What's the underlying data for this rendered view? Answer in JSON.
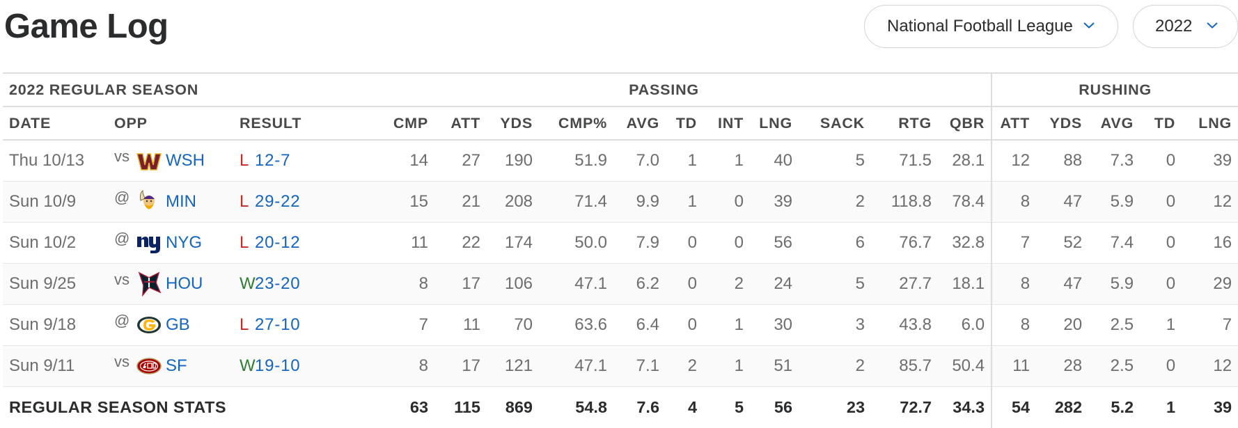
{
  "header": {
    "title": "Game Log",
    "league_select": "National Football League",
    "season_select": "2022"
  },
  "table": {
    "season_label": "2022 REGULAR SEASON",
    "passing_label": "PASSING",
    "rushing_label": "RUSHING",
    "columns": {
      "date": "DATE",
      "opp": "OPP",
      "result": "RESULT",
      "cmp": "CMP",
      "att": "ATT",
      "yds": "YDS",
      "cmp_pct": "CMP%",
      "avg": "AVG",
      "td": "TD",
      "int": "INT",
      "lng": "LNG",
      "sack": "SACK",
      "rtg": "RTG",
      "qbr": "QBR",
      "r_att": "ATT",
      "r_yds": "YDS",
      "r_avg": "AVG",
      "r_td": "TD",
      "r_lng": "LNG"
    },
    "rows": [
      {
        "date": "Thu 10/13",
        "loc": "vs",
        "logo": "commanders-logo",
        "team": "WSH",
        "wl": "L",
        "score": "12-7",
        "cmp": "14",
        "att": "27",
        "yds": "190",
        "cmp_pct": "51.9",
        "avg": "7.0",
        "td": "1",
        "int": "1",
        "lng": "40",
        "sack": "5",
        "rtg": "71.5",
        "qbr": "28.1",
        "r_att": "12",
        "r_yds": "88",
        "r_avg": "7.3",
        "r_td": "0",
        "r_lng": "39"
      },
      {
        "date": "Sun 10/9",
        "loc": "@",
        "logo": "vikings-logo",
        "team": "MIN",
        "wl": "L",
        "score": "29-22",
        "cmp": "15",
        "att": "21",
        "yds": "208",
        "cmp_pct": "71.4",
        "avg": "9.9",
        "td": "1",
        "int": "0",
        "lng": "39",
        "sack": "2",
        "rtg": "118.8",
        "qbr": "78.4",
        "r_att": "8",
        "r_yds": "47",
        "r_avg": "5.9",
        "r_td": "0",
        "r_lng": "12"
      },
      {
        "date": "Sun 10/2",
        "loc": "@",
        "logo": "giants-logo",
        "team": "NYG",
        "wl": "L",
        "score": "20-12",
        "cmp": "11",
        "att": "22",
        "yds": "174",
        "cmp_pct": "50.0",
        "avg": "7.9",
        "td": "0",
        "int": "0",
        "lng": "56",
        "sack": "6",
        "rtg": "76.7",
        "qbr": "32.8",
        "r_att": "7",
        "r_yds": "52",
        "r_avg": "7.4",
        "r_td": "0",
        "r_lng": "16"
      },
      {
        "date": "Sun 9/25",
        "loc": "vs",
        "logo": "texans-logo",
        "team": "HOU",
        "wl": "W",
        "score": "23-20",
        "cmp": "8",
        "att": "17",
        "yds": "106",
        "cmp_pct": "47.1",
        "avg": "6.2",
        "td": "0",
        "int": "2",
        "lng": "24",
        "sack": "5",
        "rtg": "27.7",
        "qbr": "18.1",
        "r_att": "8",
        "r_yds": "47",
        "r_avg": "5.9",
        "r_td": "0",
        "r_lng": "29"
      },
      {
        "date": "Sun 9/18",
        "loc": "@",
        "logo": "packers-logo",
        "team": "GB",
        "wl": "L",
        "score": "27-10",
        "cmp": "7",
        "att": "11",
        "yds": "70",
        "cmp_pct": "63.6",
        "avg": "6.4",
        "td": "0",
        "int": "1",
        "lng": "30",
        "sack": "3",
        "rtg": "43.8",
        "qbr": "6.0",
        "r_att": "8",
        "r_yds": "20",
        "r_avg": "2.5",
        "r_td": "1",
        "r_lng": "7"
      },
      {
        "date": "Sun 9/11",
        "loc": "vs",
        "logo": "49ers-logo",
        "team": "SF",
        "wl": "W",
        "score": "19-10",
        "cmp": "8",
        "att": "17",
        "yds": "121",
        "cmp_pct": "47.1",
        "avg": "7.1",
        "td": "2",
        "int": "1",
        "lng": "51",
        "sack": "2",
        "rtg": "85.7",
        "qbr": "50.4",
        "r_att": "11",
        "r_yds": "28",
        "r_avg": "2.5",
        "r_td": "0",
        "r_lng": "12"
      }
    ],
    "totals": {
      "label": "REGULAR SEASON STATS",
      "cmp": "63",
      "att": "115",
      "yds": "869",
      "cmp_pct": "54.8",
      "avg": "7.6",
      "td": "4",
      "int": "5",
      "lng": "56",
      "sack": "23",
      "rtg": "72.7",
      "qbr": "34.3",
      "r_att": "54",
      "r_yds": "282",
      "r_avg": "5.2",
      "r_td": "1",
      "r_lng": "39"
    }
  },
  "colors": {
    "loss": "#c62828",
    "win": "#2e7d32",
    "link": "#1565c0"
  }
}
